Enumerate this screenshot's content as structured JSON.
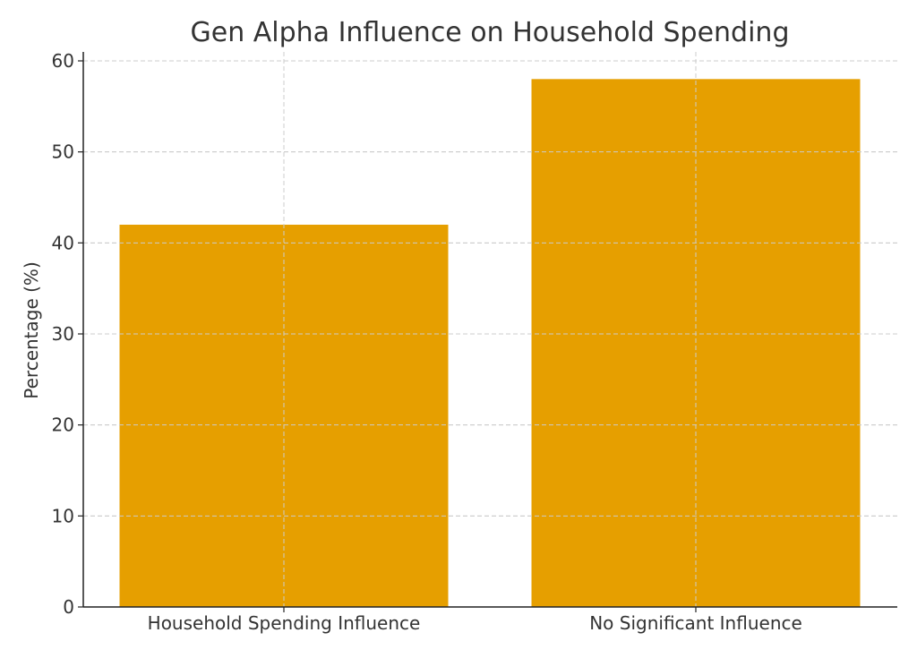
{
  "chart_data": {
    "type": "bar",
    "title": "Gen Alpha Influence on Household Spending",
    "xlabel": "",
    "ylabel": "Percentage (%)",
    "categories": [
      "Household Spending Influence",
      "No Significant Influence"
    ],
    "values": [
      42,
      58
    ],
    "ylim": [
      0,
      60
    ],
    "yticks": [
      0,
      10,
      20,
      30,
      40,
      50,
      60
    ],
    "grid": true,
    "bar_color": "#E69F00"
  }
}
